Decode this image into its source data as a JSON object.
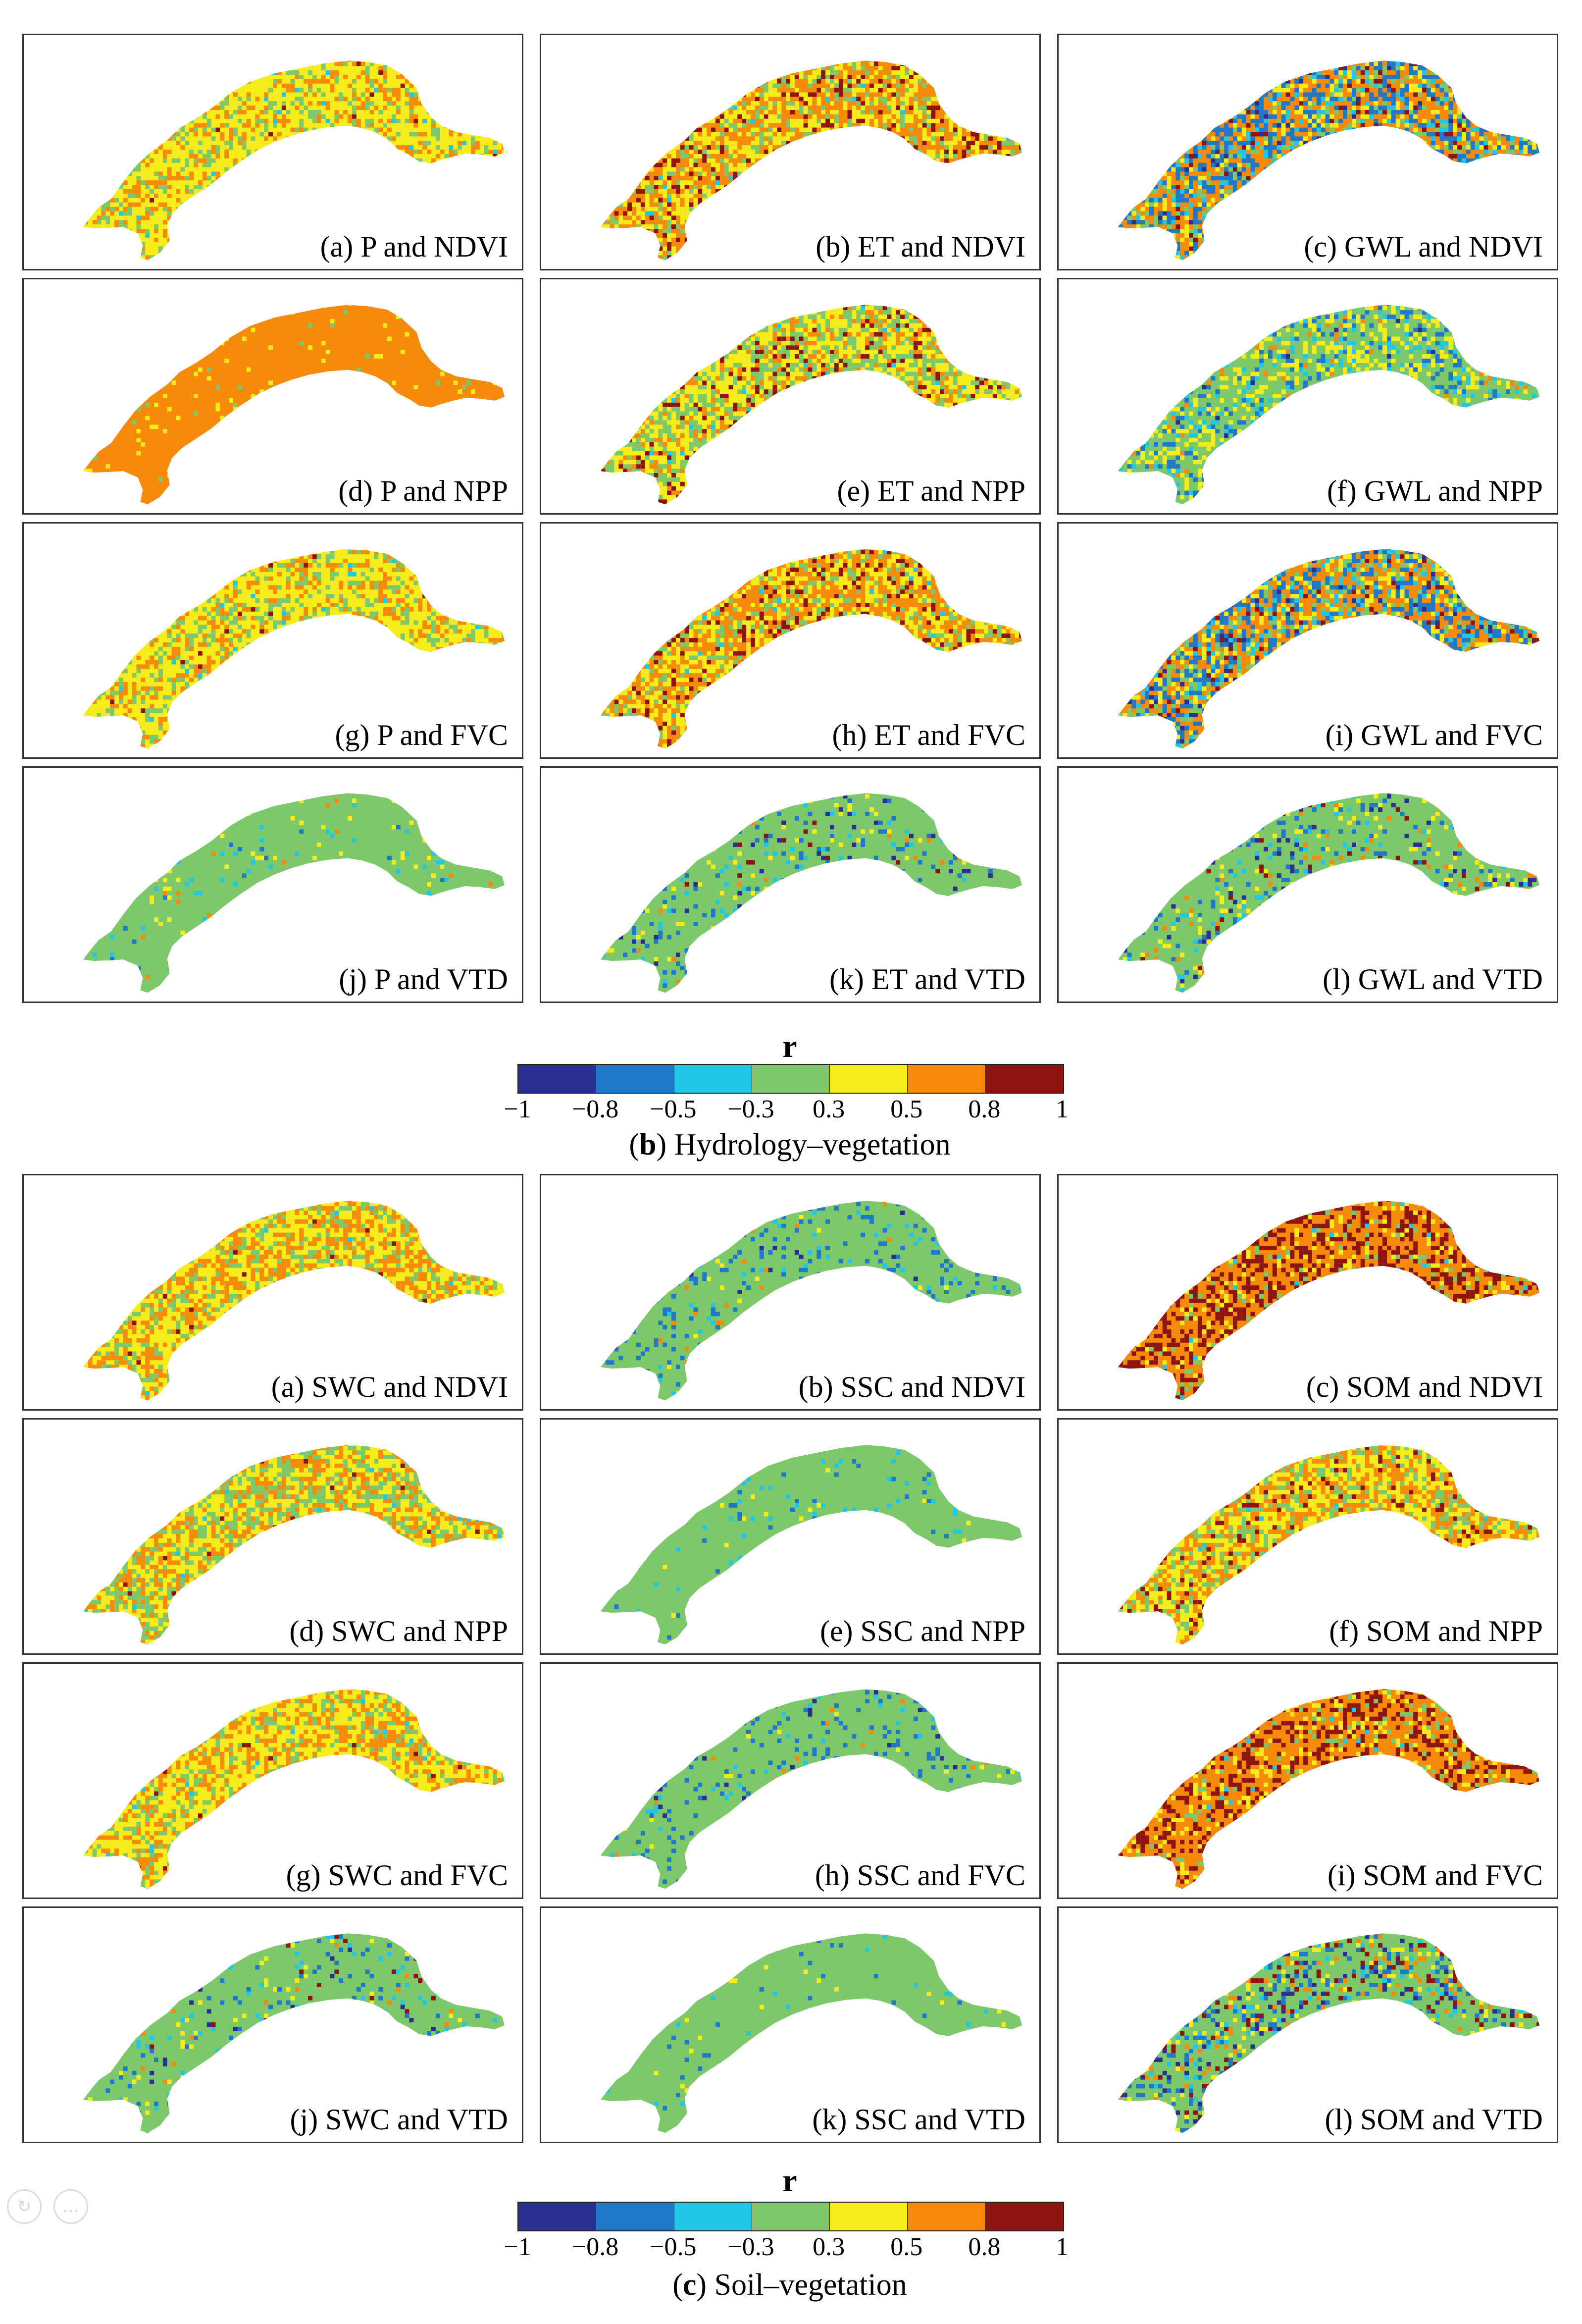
{
  "palette": [
    "#2b2f8f",
    "#1f78c8",
    "#22c7e6",
    "#7dc86b",
    "#f6ec1b",
    "#f58a0b",
    "#8e1411"
  ],
  "sections": [
    {
      "caption_letter": "b",
      "caption_text": "Hydrology–vegetation",
      "colorbar": {
        "title": "r",
        "ticks": [
          "−1",
          "−0.8",
          "−0.5",
          "−0.3",
          "0.3",
          "0.5",
          "0.8",
          "1"
        ]
      },
      "panels": [
        {
          "label": "(a) P and NDVI",
          "weights": [
            0,
            0,
            0.01,
            0.16,
            0.62,
            0.2,
            0.01
          ]
        },
        {
          "label": "(b) ET and NDVI",
          "weights": [
            0,
            0,
            0.01,
            0.14,
            0.32,
            0.4,
            0.13
          ]
        },
        {
          "label": "(c) GWL and NDVI",
          "weights": [
            0.03,
            0.28,
            0.08,
            0.1,
            0.12,
            0.34,
            0.05
          ]
        },
        {
          "label": "(d) P and NPP",
          "weights": [
            0,
            0,
            0,
            0.01,
            0.05,
            0.94,
            0
          ]
        },
        {
          "label": "(e) ET and NPP",
          "weights": [
            0,
            0,
            0.01,
            0.3,
            0.42,
            0.18,
            0.09
          ]
        },
        {
          "label": "(f) GWL and NPP",
          "weights": [
            0.01,
            0.12,
            0.1,
            0.52,
            0.22,
            0.03,
            0
          ]
        },
        {
          "label": "(g) P and FVC",
          "weights": [
            0,
            0,
            0.01,
            0.2,
            0.58,
            0.2,
            0.01
          ]
        },
        {
          "label": "(h) ET and FVC",
          "weights": [
            0,
            0,
            0.01,
            0.14,
            0.34,
            0.4,
            0.11
          ]
        },
        {
          "label": "(i) GWL and FVC",
          "weights": [
            0.04,
            0.26,
            0.08,
            0.14,
            0.12,
            0.32,
            0.04
          ]
        },
        {
          "label": "(j) P and VTD",
          "weights": [
            0,
            0.01,
            0.02,
            0.92,
            0.04,
            0.01,
            0
          ]
        },
        {
          "label": "(k) ET and VTD",
          "weights": [
            0.02,
            0.06,
            0.03,
            0.84,
            0.03,
            0.01,
            0.01
          ]
        },
        {
          "label": "(l) GWL and VTD",
          "weights": [
            0.03,
            0.06,
            0.03,
            0.78,
            0.05,
            0.03,
            0.02
          ]
        }
      ]
    },
    {
      "caption_letter": "c",
      "caption_text": "Soil–vegetation",
      "colorbar": {
        "title": "r",
        "ticks": [
          "−1",
          "−0.8",
          "−0.5",
          "−0.3",
          "0.3",
          "0.5",
          "0.8",
          "1"
        ]
      },
      "panels": [
        {
          "label": "(a) SWC and NDVI",
          "weights": [
            0,
            0,
            0.01,
            0.2,
            0.45,
            0.33,
            0.01
          ]
        },
        {
          "label": "(b) SSC and NDVI",
          "weights": [
            0.01,
            0.08,
            0.03,
            0.86,
            0.01,
            0.01,
            0
          ]
        },
        {
          "label": "(c) SOM and NDVI",
          "weights": [
            0,
            0,
            0.01,
            0.06,
            0.1,
            0.48,
            0.35
          ]
        },
        {
          "label": "(d) SWC and NPP",
          "weights": [
            0,
            0,
            0.01,
            0.28,
            0.4,
            0.3,
            0.01
          ]
        },
        {
          "label": "(e) SSC and NPP",
          "weights": [
            0,
            0.03,
            0.03,
            0.93,
            0.01,
            0,
            0
          ]
        },
        {
          "label": "(f) SOM and NPP",
          "weights": [
            0,
            0,
            0.01,
            0.22,
            0.4,
            0.3,
            0.07
          ]
        },
        {
          "label": "(g) SWC and FVC",
          "weights": [
            0,
            0,
            0.01,
            0.18,
            0.48,
            0.32,
            0.01
          ]
        },
        {
          "label": "(h) SSC and FVC",
          "weights": [
            0.01,
            0.07,
            0.03,
            0.87,
            0.01,
            0.01,
            0
          ]
        },
        {
          "label": "(i) SOM and FVC",
          "weights": [
            0,
            0,
            0.01,
            0.06,
            0.14,
            0.52,
            0.27
          ]
        },
        {
          "label": "(j) SWC and VTD",
          "weights": [
            0.01,
            0.05,
            0.03,
            0.86,
            0.03,
            0.01,
            0.01
          ]
        },
        {
          "label": "(k) SSC and VTD",
          "weights": [
            0,
            0.01,
            0.01,
            0.97,
            0.01,
            0,
            0
          ]
        },
        {
          "label": "(l) SOM and VTD",
          "weights": [
            0.06,
            0.1,
            0.04,
            0.62,
            0.08,
            0.05,
            0.05
          ]
        }
      ]
    }
  ]
}
